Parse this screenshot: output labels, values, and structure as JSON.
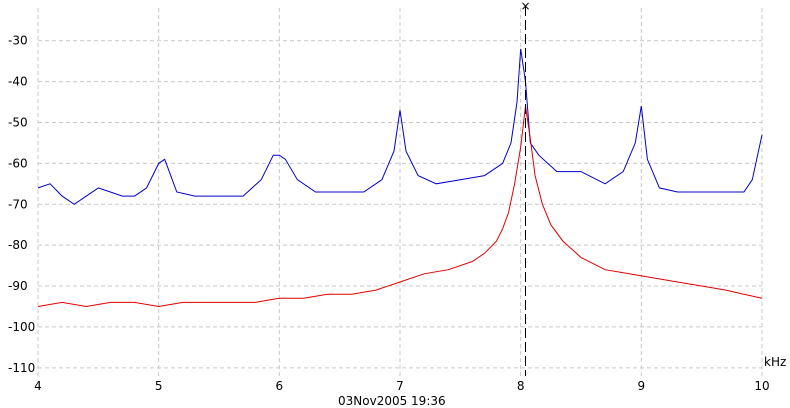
{
  "chart_data": {
    "type": "line",
    "x_unit_label": "kHz",
    "timestamp": "03Nov2005  19:36",
    "xlim": [
      4,
      10
    ],
    "ylim": [
      -112,
      -22
    ],
    "x_ticks": [
      4,
      5,
      6,
      7,
      8,
      9,
      10
    ],
    "x_tick_labels": [
      "4",
      "5",
      "6",
      "7",
      "8",
      "9",
      "10"
    ],
    "y_ticks": [
      -30,
      -40,
      -50,
      -60,
      -70,
      -80,
      -90,
      -100,
      -110
    ],
    "y_tick_labels": [
      "-30",
      "-40",
      "-50",
      "-60",
      "-70",
      "-80",
      "-90",
      "-100",
      "-110"
    ],
    "grid": true,
    "cursor": {
      "x": 8.04,
      "marker": "×"
    },
    "colors": {
      "series_upper": "#0000cc",
      "series_lower": "#e00000",
      "grid": "#c8c8c8",
      "cursor": "#000000"
    },
    "series": [
      {
        "color": "#0000cc",
        "x": [
          4.0,
          4.1,
          4.2,
          4.3,
          4.4,
          4.5,
          4.6,
          4.7,
          4.8,
          4.9,
          5.0,
          5.05,
          5.15,
          5.3,
          5.5,
          5.7,
          5.85,
          5.95,
          6.0,
          6.05,
          6.15,
          6.3,
          6.5,
          6.7,
          6.85,
          6.95,
          7.0,
          7.05,
          7.15,
          7.3,
          7.5,
          7.7,
          7.85,
          7.92,
          7.97,
          8.0,
          8.04,
          8.08,
          8.15,
          8.3,
          8.5,
          8.7,
          8.85,
          8.95,
          9.0,
          9.05,
          9.15,
          9.3,
          9.5,
          9.7,
          9.85,
          9.92,
          10.0
        ],
        "y": [
          -66,
          -65,
          -68,
          -70,
          -68,
          -66,
          -67,
          -68,
          -68,
          -66,
          -60,
          -59,
          -67,
          -68,
          -68,
          -68,
          -64,
          -58,
          -58,
          -59,
          -64,
          -67,
          -67,
          -67,
          -64,
          -57,
          -47,
          -57,
          -63,
          -65,
          -64,
          -63,
          -60,
          -55,
          -45,
          -32,
          -40,
          -55,
          -58,
          -62,
          -62,
          -65,
          -62,
          -55,
          -46,
          -59,
          -66,
          -67,
          -67,
          -67,
          -67,
          -64,
          -53
        ]
      },
      {
        "color": "#e00000",
        "x": [
          4.0,
          4.2,
          4.4,
          4.6,
          4.8,
          5.0,
          5.2,
          5.4,
          5.6,
          5.8,
          6.0,
          6.2,
          6.4,
          6.6,
          6.8,
          7.0,
          7.2,
          7.4,
          7.6,
          7.7,
          7.8,
          7.85,
          7.9,
          7.95,
          8.0,
          8.04,
          8.08,
          8.12,
          8.18,
          8.25,
          8.35,
          8.5,
          8.7,
          8.9,
          9.1,
          9.3,
          9.5,
          9.7,
          9.85,
          10.0
        ],
        "y": [
          -95,
          -94,
          -95,
          -94,
          -94,
          -95,
          -94,
          -94,
          -94,
          -94,
          -93,
          -93,
          -92,
          -92,
          -91,
          -89,
          -87,
          -86,
          -84,
          -82,
          -79,
          -76,
          -72,
          -65,
          -56,
          -46,
          -54,
          -63,
          -70,
          -75,
          -79,
          -83,
          -86,
          -87,
          -88,
          -89,
          -90,
          -91,
          -92,
          -93
        ]
      }
    ]
  }
}
